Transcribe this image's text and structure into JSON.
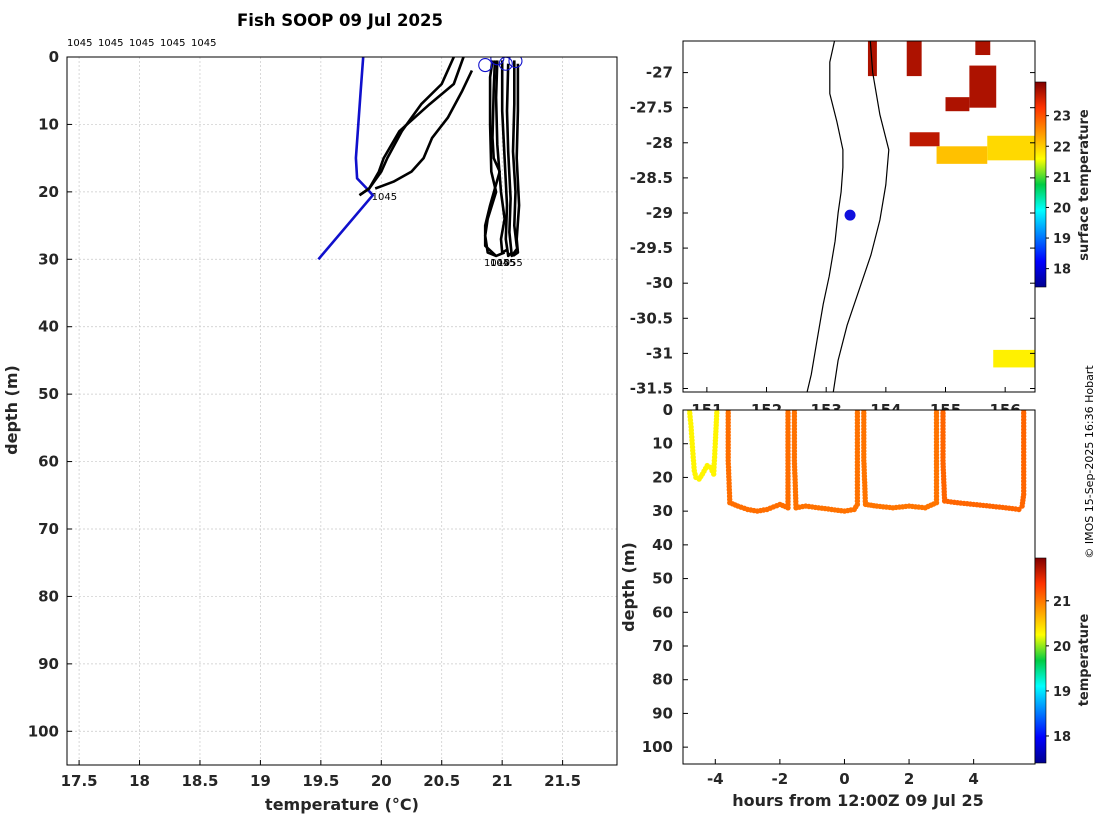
{
  "figure": {
    "title": "Fish SOOP 09 Jul 2025",
    "credit": "© IMOS 15-Sep-2025 16:36 Hobart"
  },
  "chart_data": [
    {
      "type": "line",
      "panel": "profiles",
      "xlabel": "temperature (°C)",
      "ylabel": "depth (m)",
      "xlim": [
        17.4,
        21.95
      ],
      "ylim": [
        105,
        0
      ],
      "y_reversed": true,
      "xticks": [
        17.5,
        18,
        18.5,
        19,
        19.5,
        20,
        20.5,
        21,
        21.5
      ],
      "yticks": [
        0,
        10,
        20,
        30,
        40,
        50,
        60,
        70,
        80,
        90,
        100
      ],
      "grid": true,
      "top_labels": [
        "1045",
        "1045",
        "1045",
        "1045",
        "1045"
      ],
      "colors": {
        "climatology": "#1010cc",
        "profile": "#000000",
        "surface_marker": "#1010cc"
      },
      "series": [
        {
          "role": "climatology",
          "x": [
            19.85,
            19.83,
            19.81,
            19.79,
            19.8,
            19.88,
            19.93,
            19.48
          ],
          "y": [
            0,
            5,
            10,
            15,
            18,
            19.5,
            20.5,
            30
          ]
        },
        {
          "role": "profile",
          "x": [
            20.68,
            20.6,
            20.4,
            20.15,
            20.02,
            19.98,
            19.9,
            19.82
          ],
          "y": [
            0,
            4,
            7,
            11,
            15,
            17,
            19.5,
            20.5
          ]
        },
        {
          "role": "profile",
          "x": [
            20.6,
            20.5,
            20.33,
            20.17,
            20.05,
            20.0,
            19.9,
            19.82
          ],
          "y": [
            0,
            4,
            7,
            11,
            15,
            17,
            19.5,
            20.5
          ]
        },
        {
          "role": "profile",
          "x": [
            20.75,
            20.67,
            20.55,
            20.42,
            20.35,
            20.25,
            20.1,
            19.95
          ],
          "y": [
            2,
            5,
            9,
            12,
            15,
            17,
            18.5,
            19.5
          ]
        },
        {
          "role": "profile",
          "x": [
            20.92,
            20.9,
            20.9,
            20.91,
            20.95,
            20.88,
            20.86,
            20.88,
            20.95,
            21.02
          ],
          "y": [
            0.5,
            3,
            10,
            17,
            20,
            24,
            26.5,
            29,
            29.5,
            29
          ]
        },
        {
          "role": "profile",
          "x": [
            20.94,
            20.93,
            20.92,
            20.93,
            20.98,
            20.9,
            20.86,
            20.86,
            20.95
          ],
          "y": [
            0.5,
            5,
            12,
            15,
            17,
            22,
            25,
            28,
            29.5
          ]
        },
        {
          "role": "profile",
          "x": [
            20.96,
            20.95,
            20.96,
            20.99,
            21.02,
            20.99,
            21.0,
            21.05
          ],
          "y": [
            0.5,
            6,
            13,
            20,
            24,
            27,
            29,
            28.5
          ]
        },
        {
          "role": "profile",
          "x": [
            21.0,
            21.0,
            21.02,
            21.04,
            21.03,
            21.05,
            21.08
          ],
          "y": [
            0.5,
            8,
            15,
            22,
            27,
            29.5,
            29
          ]
        },
        {
          "role": "profile",
          "x": [
            21.05,
            21.04,
            21.05,
            21.07,
            21.06,
            21.08,
            21.12
          ],
          "y": [
            1,
            8,
            14,
            21,
            26,
            29.5,
            28.5
          ]
        },
        {
          "role": "profile",
          "x": [
            21.1,
            21.1,
            21.09,
            21.11,
            21.1,
            21.12,
            21.13
          ],
          "y": [
            0.5,
            7,
            14,
            20,
            25,
            28,
            29
          ]
        },
        {
          "role": "profile",
          "x": [
            21.13,
            21.13,
            21.12,
            21.14,
            21.12,
            21.13,
            21.09
          ],
          "y": [
            1,
            8,
            15,
            22,
            27,
            29,
            29.5
          ]
        }
      ],
      "surface_markers": [
        {
          "x": 20.86,
          "y": 1.2
        },
        {
          "x": 20.96,
          "y": 0.2
        },
        {
          "x": 21.03,
          "y": 1.0
        },
        {
          "x": 21.11,
          "y": 0.6
        }
      ],
      "annotations": [
        {
          "text": "1045",
          "x": 19.92,
          "y": 20.6
        },
        {
          "text": "1045",
          "x": 20.85,
          "y": 30.4
        },
        {
          "text": "1045",
          "x": 20.9,
          "y": 30.4
        },
        {
          "text": "1055",
          "x": 20.96,
          "y": 30.4
        }
      ]
    },
    {
      "type": "heatmap",
      "panel": "map",
      "colorbar_label": "surface temperature",
      "colorbar_ticks": [
        18,
        19,
        20,
        21,
        22,
        23
      ],
      "colorbar_range": [
        17.4,
        24.1
      ],
      "xlim": [
        150.6,
        156.5
      ],
      "ylim": [
        -31.55,
        -26.55
      ],
      "yticks": [
        -27,
        -27.5,
        -28,
        -28.5,
        -29,
        -29.5,
        -30,
        -30.5,
        -31,
        -31.5
      ],
      "xticks": [
        151,
        152,
        153,
        154,
        155,
        156
      ],
      "xtick_labels": [
        "151",
        "152",
        "153",
        "154",
        "155",
        "156"
      ],
      "position_marker": {
        "lon": 153.4,
        "lat": -29.03,
        "color": "#1010dd"
      },
      "coast": [
        [
          153.14,
          -26.55
        ],
        [
          153.06,
          -26.85
        ],
        [
          153.06,
          -27.3
        ],
        [
          153.18,
          -27.7
        ],
        [
          153.28,
          -28.1
        ],
        [
          153.28,
          -28.35
        ],
        [
          153.25,
          -28.7
        ],
        [
          153.2,
          -29.0
        ],
        [
          153.15,
          -29.4
        ],
        [
          153.05,
          -29.9
        ],
        [
          152.95,
          -30.3
        ],
        [
          152.85,
          -30.8
        ],
        [
          152.75,
          -31.3
        ],
        [
          152.68,
          -31.55
        ]
      ],
      "isobath": [
        [
          153.74,
          -26.55
        ],
        [
          153.78,
          -27.0
        ],
        [
          153.9,
          -27.6
        ],
        [
          154.05,
          -28.1
        ],
        [
          154.0,
          -28.6
        ],
        [
          153.9,
          -29.1
        ],
        [
          153.75,
          -29.6
        ],
        [
          153.55,
          -30.1
        ],
        [
          153.35,
          -30.6
        ],
        [
          153.2,
          -31.1
        ],
        [
          153.12,
          -31.55
        ]
      ],
      "sst_patches": [
        {
          "lon": [
            154.35,
            154.6
          ],
          "lat": [
            -27.05,
            -26.55
          ],
          "temp": 23.8
        },
        {
          "lon": [
            155.5,
            155.75
          ],
          "lat": [
            -26.75,
            -26.55
          ],
          "temp": 23.8
        },
        {
          "lon": [
            153.7,
            153.85
          ],
          "lat": [
            -27.05,
            -26.55
          ],
          "temp": 23.8
        },
        {
          "lon": [
            155.4,
            155.85
          ],
          "lat": [
            -27.5,
            -26.9
          ],
          "temp": 23.8
        },
        {
          "lon": [
            155.0,
            155.4
          ],
          "lat": [
            -27.55,
            -27.35
          ],
          "temp": 23.8
        },
        {
          "lon": [
            154.4,
            154.9
          ],
          "lat": [
            -28.05,
            -27.85
          ],
          "temp": 23.7
        },
        {
          "lon": [
            154.85,
            155.7
          ],
          "lat": [
            -28.3,
            -28.05
          ],
          "temp": 22.1
        },
        {
          "lon": [
            155.7,
            156.5
          ],
          "lat": [
            -28.25,
            -27.9
          ],
          "temp": 21.9
        },
        {
          "lon": [
            155.8,
            156.5
          ],
          "lat": [
            -31.2,
            -30.95
          ],
          "temp": 21.7
        }
      ]
    },
    {
      "type": "scatter",
      "panel": "time-depth",
      "xlabel": "hours from 12:00Z 09 Jul 25",
      "ylabel": "depth (m)",
      "colorbar_label": "temperature",
      "colorbar_ticks": [
        18,
        19,
        20,
        21
      ],
      "colorbar_range": [
        17.4,
        21.95
      ],
      "xlim": [
        -5.0,
        5.9
      ],
      "ylim": [
        105,
        0
      ],
      "y_reversed": true,
      "xticks": [
        -4,
        -2,
        0,
        2,
        4
      ],
      "yticks": [
        0,
        10,
        20,
        30,
        40,
        50,
        60,
        70,
        80,
        90,
        100
      ],
      "tracks": [
        {
          "t": [
            -4.8,
            -4.75,
            -4.7,
            -4.65,
            -4.6,
            -4.5,
            -4.4,
            -4.25,
            -4.15,
            -4.05,
            -4.0,
            -3.95
          ],
          "d": [
            0,
            5,
            12,
            18,
            20,
            20.5,
            19,
            16.5,
            17,
            19,
            10,
            0
          ],
          "temp": 20.3
        },
        {
          "t": [
            -3.6,
            -3.6,
            -3.55,
            -3.3,
            -3.0,
            -2.7,
            -2.4,
            -2.0,
            -1.75,
            -1.75
          ],
          "d": [
            0,
            15,
            27.5,
            28.5,
            29.5,
            30,
            29.5,
            28,
            29,
            0
          ],
          "temp": 21.05
        },
        {
          "t": [
            -1.55,
            -1.55,
            -1.5,
            -1.2,
            -0.8,
            -0.4,
            0.0,
            0.3,
            0.4,
            0.4
          ],
          "d": [
            0,
            15,
            29,
            28.5,
            29,
            29.5,
            30,
            29.5,
            28,
            0
          ],
          "temp": 21.03
        },
        {
          "t": [
            0.6,
            0.6,
            0.65,
            1.0,
            1.5,
            2.0,
            2.5,
            2.85,
            2.85
          ],
          "d": [
            0,
            15,
            28,
            28.5,
            29,
            28.5,
            29,
            27.5,
            0
          ],
          "temp": 21.02
        },
        {
          "t": [
            3.05,
            3.05,
            3.1,
            3.5,
            4.0,
            4.5,
            5.0,
            5.4,
            5.5,
            5.55,
            5.55
          ],
          "d": [
            0,
            15,
            27,
            27.5,
            28,
            28.5,
            29,
            29.5,
            28.5,
            25,
            0
          ],
          "temp": 21.1
        }
      ]
    }
  ]
}
